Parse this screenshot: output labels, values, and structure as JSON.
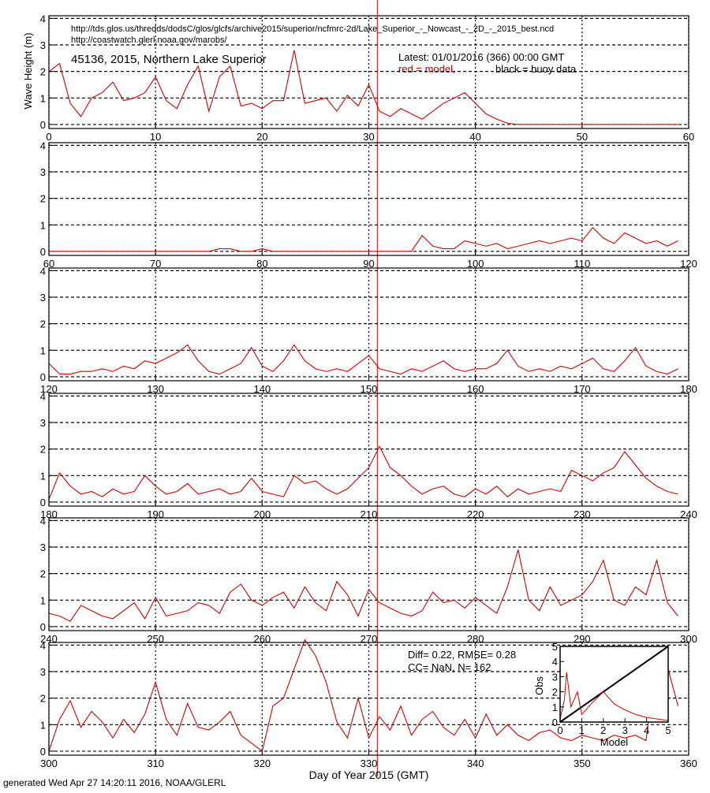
{
  "header": {
    "url1": "http://tds.glos.us/thredds/dodsC/glos/glcfs/archive2015/superior/ncfmrc-2d/Lake_Superior_-_Nowcast_-_2D_-_2015_best.ncd",
    "url2": "http://coastwatch.glerl.noaa.gov/marobs/",
    "station": "45136, 2015, Northern Lake Superior",
    "latest": "Latest: 01/01/2016 (366) 00:00 GMT",
    "legend_model": "red = model,",
    "legend_buoy": "black = buoy data"
  },
  "stats": {
    "diff": "Diff= 0.22,  RMSE= 0.28",
    "cc": "CC=  NaN, N= 162"
  },
  "footer": "generated Wed Apr 27 14:20:11 2016, NOAA/GLERL",
  "chart_data": [
    {
      "type": "line",
      "ylabel": "Wave Height (m)",
      "marker_x": 30.8,
      "marker_color": "#d00000",
      "xlim": [
        0,
        60
      ],
      "ylim": [
        -0.15,
        4.1
      ],
      "xticks": [
        0,
        10,
        20,
        30,
        40,
        50,
        60
      ],
      "yticks": [
        0,
        1,
        2,
        3,
        4
      ],
      "grid": true,
      "x": [
        0,
        1,
        2,
        3,
        4,
        5,
        6,
        7,
        8,
        9,
        10,
        11,
        12,
        13,
        14,
        15,
        16,
        17,
        18,
        19,
        20,
        21,
        22,
        23,
        24,
        25,
        26,
        27,
        28,
        29,
        30,
        31,
        32,
        33,
        34,
        35,
        36,
        37,
        38,
        39,
        40,
        41,
        42,
        43,
        44,
        45,
        46,
        47,
        48,
        49,
        50,
        51,
        52,
        53,
        54,
        55,
        56,
        57,
        58,
        59
      ],
      "series": [
        {
          "color": "#d00000",
          "values": [
            2.0,
            2.3,
            0.8,
            0.3,
            1.0,
            1.2,
            1.6,
            0.9,
            1.0,
            1.2,
            1.8,
            0.9,
            0.6,
            1.5,
            2.2,
            0.5,
            1.8,
            2.2,
            0.7,
            0.8,
            0.6,
            0.9,
            0.9,
            2.8,
            0.8,
            0.9,
            1.0,
            0.5,
            1.1,
            0.7,
            1.5,
            0.5,
            0.3,
            0.6,
            0.4,
            0.2,
            0.5,
            0.8,
            1.0,
            1.2,
            0.8,
            0.4,
            0.2,
            0.05,
            0,
            0,
            0,
            0,
            0,
            0,
            0,
            0,
            0,
            0,
            0,
            0,
            0,
            0,
            0,
            0
          ]
        }
      ]
    },
    {
      "type": "line",
      "xlim": [
        60,
        120
      ],
      "ylim": [
        -0.15,
        4.1
      ],
      "xticks": [
        60,
        70,
        80,
        90,
        100,
        110,
        120
      ],
      "yticks": [
        0,
        1,
        2,
        3,
        4
      ],
      "grid": true,
      "x": [
        60,
        61,
        62,
        63,
        64,
        65,
        66,
        67,
        68,
        69,
        70,
        71,
        72,
        73,
        74,
        75,
        76,
        77,
        78,
        79,
        80,
        81,
        82,
        83,
        84,
        85,
        86,
        87,
        88,
        89,
        90,
        91,
        92,
        93,
        94,
        95,
        96,
        97,
        98,
        99,
        100,
        101,
        102,
        103,
        104,
        105,
        106,
        107,
        108,
        109,
        110,
        111,
        112,
        113,
        114,
        115,
        116,
        117,
        118,
        119
      ],
      "series": [
        {
          "color": "#d00000",
          "values": [
            0,
            0,
            0,
            0,
            0,
            0,
            0,
            0,
            0,
            0,
            0,
            0,
            0,
            0,
            0,
            0,
            0.1,
            0.1,
            0,
            0,
            0.1,
            0,
            0,
            0,
            0,
            0,
            0,
            0,
            0,
            0,
            0,
            0,
            0,
            0,
            0,
            0.6,
            0.2,
            0.1,
            0.1,
            0.4,
            0.3,
            0.2,
            0.3,
            0.1,
            0.2,
            0.3,
            0.4,
            0.3,
            0.4,
            0.5,
            0.4,
            0.9,
            0.5,
            0.3,
            0.7,
            0.5,
            0.3,
            0.4,
            0.2,
            0.4
          ]
        }
      ]
    },
    {
      "type": "line",
      "xlim": [
        120,
        180
      ],
      "ylim": [
        -0.15,
        4.1
      ],
      "xticks": [
        120,
        130,
        140,
        150,
        160,
        170,
        180
      ],
      "yticks": [
        0,
        1,
        2,
        3,
        4
      ],
      "grid": true,
      "x": [
        120,
        121,
        122,
        123,
        124,
        125,
        126,
        127,
        128,
        129,
        130,
        131,
        132,
        133,
        134,
        135,
        136,
        137,
        138,
        139,
        140,
        141,
        142,
        143,
        144,
        145,
        146,
        147,
        148,
        149,
        150,
        151,
        152,
        153,
        154,
        155,
        156,
        157,
        158,
        159,
        160,
        161,
        162,
        163,
        164,
        165,
        166,
        167,
        168,
        169,
        170,
        171,
        172,
        173,
        174,
        175,
        176,
        177,
        178,
        179
      ],
      "series": [
        {
          "color": "#d00000",
          "values": [
            0.5,
            0.1,
            0.1,
            0.2,
            0.2,
            0.3,
            0.2,
            0.4,
            0.3,
            0.6,
            0.5,
            0.7,
            0.9,
            1.2,
            0.6,
            0.2,
            0.1,
            0.3,
            0.5,
            1.1,
            0.4,
            0.2,
            0.6,
            1.2,
            0.6,
            0.3,
            0.2,
            0.3,
            0.2,
            0.5,
            0.8,
            0.3,
            0.2,
            0.1,
            0.3,
            0.2,
            0.4,
            0.6,
            0.3,
            0.2,
            0.3,
            0.3,
            0.5,
            1.0,
            0.4,
            0.2,
            0.3,
            0.2,
            0.4,
            0.3,
            0.5,
            0.7,
            0.3,
            0.2,
            0.6,
            1.1,
            0.4,
            0.2,
            0.1,
            0.3
          ]
        }
      ]
    },
    {
      "type": "line",
      "xlim": [
        180,
        240
      ],
      "ylim": [
        -0.15,
        4.1
      ],
      "xticks": [
        180,
        190,
        200,
        210,
        220,
        230,
        240
      ],
      "yticks": [
        0,
        1,
        2,
        3,
        4
      ],
      "grid": true,
      "x": [
        180,
        181,
        182,
        183,
        184,
        185,
        186,
        187,
        188,
        189,
        190,
        191,
        192,
        193,
        194,
        195,
        196,
        197,
        198,
        199,
        200,
        201,
        202,
        203,
        204,
        205,
        206,
        207,
        208,
        209,
        210,
        211,
        212,
        213,
        214,
        215,
        216,
        217,
        218,
        219,
        220,
        221,
        222,
        223,
        224,
        225,
        226,
        227,
        228,
        229,
        230,
        231,
        232,
        233,
        234,
        235,
        236,
        237,
        238,
        239
      ],
      "series": [
        {
          "color": "#d00000",
          "values": [
            0.1,
            1.1,
            0.6,
            0.3,
            0.4,
            0.2,
            0.5,
            0.3,
            0.4,
            1.0,
            0.6,
            0.3,
            0.4,
            0.7,
            0.3,
            0.4,
            0.5,
            0.3,
            0.4,
            0.9,
            0.4,
            0.3,
            0.2,
            1.0,
            0.7,
            0.8,
            0.5,
            0.3,
            0.5,
            0.9,
            1.3,
            2.1,
            1.3,
            1.0,
            0.6,
            0.3,
            0.5,
            0.6,
            0.3,
            0.2,
            0.5,
            0.3,
            0.6,
            0.2,
            0.5,
            0.3,
            0.4,
            0.5,
            0.4,
            1.2,
            1.0,
            0.8,
            1.1,
            1.3,
            1.9,
            1.4,
            0.9,
            0.6,
            0.4,
            0.3
          ]
        }
      ]
    },
    {
      "type": "line",
      "xlim": [
        240,
        300
      ],
      "ylim": [
        -0.15,
        4.1
      ],
      "xticks": [
        240,
        250,
        260,
        270,
        280,
        290,
        300
      ],
      "yticks": [
        0,
        1,
        2,
        3,
        4
      ],
      "grid": true,
      "x": [
        240,
        241,
        242,
        243,
        244,
        245,
        246,
        247,
        248,
        249,
        250,
        251,
        252,
        253,
        254,
        255,
        256,
        257,
        258,
        259,
        260,
        261,
        262,
        263,
        264,
        265,
        266,
        267,
        268,
        269,
        270,
        271,
        272,
        273,
        274,
        275,
        276,
        277,
        278,
        279,
        280,
        281,
        282,
        283,
        284,
        285,
        286,
        287,
        288,
        289,
        290,
        291,
        292,
        293,
        294,
        295,
        296,
        297,
        298,
        299
      ],
      "series": [
        {
          "color": "#d00000",
          "values": [
            0.5,
            0.4,
            0.2,
            0.8,
            0.6,
            0.4,
            0.3,
            0.6,
            0.9,
            0.3,
            1.1,
            0.4,
            0.5,
            0.6,
            0.9,
            0.8,
            0.5,
            1.3,
            1.6,
            1.0,
            0.8,
            1.1,
            1.3,
            0.7,
            1.5,
            0.9,
            0.6,
            1.7,
            1.2,
            0.4,
            1.4,
            0.9,
            0.7,
            0.5,
            0.4,
            0.6,
            1.3,
            0.9,
            1.0,
            0.7,
            1.1,
            0.8,
            0.5,
            1.5,
            2.9,
            1.0,
            0.6,
            1.5,
            0.8,
            1.0,
            1.2,
            1.7,
            2.5,
            1.0,
            0.8,
            1.5,
            1.2,
            2.5,
            0.9,
            0.4
          ]
        }
      ]
    },
    {
      "type": "line",
      "xlabel": "Day of Year 2015 (GMT)",
      "xlim": [
        300,
        360
      ],
      "ylim": [
        -0.15,
        4.1
      ],
      "xticks": [
        300,
        310,
        320,
        330,
        340,
        350,
        360
      ],
      "yticks": [
        0,
        1,
        2,
        3,
        4
      ],
      "grid": true,
      "x": [
        300,
        301,
        302,
        303,
        304,
        305,
        306,
        307,
        308,
        309,
        310,
        311,
        312,
        313,
        314,
        315,
        316,
        317,
        318,
        319,
        320,
        321,
        322,
        323,
        324,
        325,
        326,
        327,
        328,
        329,
        330,
        331,
        332,
        333,
        334,
        335,
        336,
        337,
        338,
        339,
        340,
        341,
        342,
        343,
        344,
        345,
        346,
        347,
        348,
        349,
        350,
        351,
        352,
        353,
        354,
        355,
        356,
        357,
        358,
        359
      ],
      "series": [
        {
          "color": "#d00000",
          "values": [
            0.0,
            1.2,
            1.9,
            0.9,
            1.5,
            1.1,
            0.5,
            1.2,
            0.7,
            1.4,
            2.6,
            1.2,
            0.6,
            1.8,
            0.9,
            0.8,
            1.1,
            1.5,
            0.6,
            0.3,
            0.0,
            1.7,
            2.0,
            3.1,
            4.2,
            3.6,
            2.6,
            1.1,
            0.5,
            2.0,
            0.5,
            1.3,
            0.8,
            1.7,
            0.6,
            1.2,
            1.5,
            0.9,
            0.6,
            1.2,
            0.5,
            1.4,
            0.6,
            1.0,
            0.6,
            0.4,
            0.7,
            0.8,
            0.5,
            0.4,
            0.6,
            0.5,
            0.4,
            0.6,
            0.5,
            0.6,
            0.4,
            3.8,
            3.2,
            1.7
          ]
        }
      ]
    },
    {
      "type": "scatter",
      "xlabel": "Model",
      "ylabel": "Obs",
      "xlim": [
        0,
        5
      ],
      "ylim": [
        0,
        5
      ],
      "xticks": [
        0,
        1,
        2,
        3,
        4,
        5
      ],
      "yticks": [
        0,
        1,
        2,
        3,
        4,
        5
      ],
      "x": [
        0,
        0.2,
        0.3,
        0.5,
        0.8,
        1.0,
        1.5,
        2.0,
        2.5,
        3.0,
        3.5,
        4.0,
        4.5,
        5.0
      ],
      "series": [
        {
          "color": "#d00000",
          "values": [
            0.2,
            1.5,
            3.3,
            1.0,
            2.0,
            0.5,
            1.3,
            2.0,
            1.2,
            0.8,
            0.5,
            0.3,
            0.2,
            0.1
          ]
        }
      ]
    }
  ]
}
